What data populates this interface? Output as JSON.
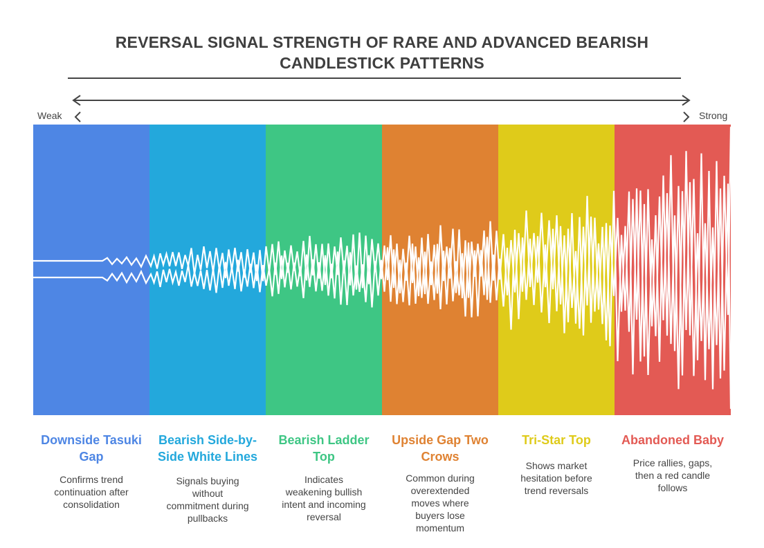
{
  "title_lines": [
    "REVERSAL SIGNAL STRENGTH OF RARE AND ADVANCED BEARISH",
    "CANDLESTICK PATTERNS"
  ],
  "scale": {
    "weak_label": "Weak",
    "strong_label": "Strong"
  },
  "patterns": [
    {
      "name": "Downside Tasuki Gap",
      "description": "Confirms trend continuation after consolidation",
      "color": "#4e86e4"
    },
    {
      "name": "Bearish Side-by-Side White Lines",
      "description": "Signals buying without commitment during pullbacks",
      "color": "#23a8dc"
    },
    {
      "name": "Bearish Ladder Top",
      "description": "Indicates weakening bullish intent and incoming reversal",
      "color": "#3ec684"
    },
    {
      "name": "Upside Gap Two Crows",
      "description": "Common during overextended moves where buyers lose momentum",
      "color": "#df8232"
    },
    {
      "name": "Tri-Star Top",
      "description": "Shows market hesitation before trend reversals",
      "color": "#dfcb1a"
    },
    {
      "name": "Abandoned Baby",
      "description": "Price rallies, gaps, then a red candle follows",
      "color": "#e35a54"
    }
  ]
}
